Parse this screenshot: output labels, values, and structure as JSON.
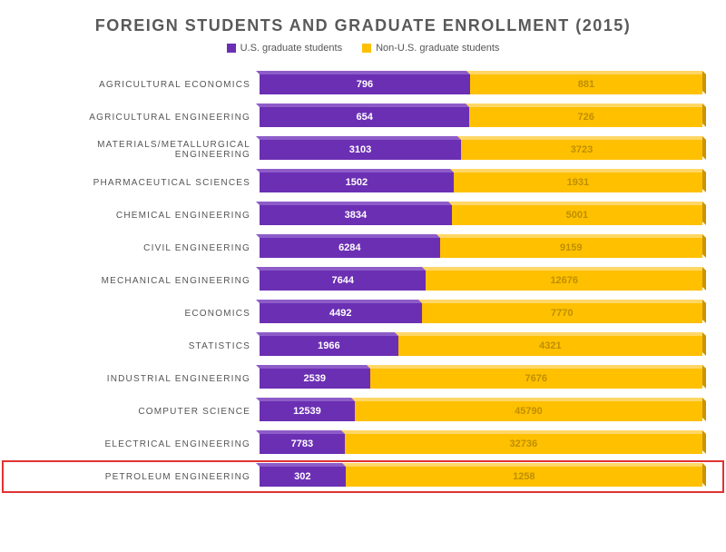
{
  "chart": {
    "type": "stacked-bar-horizontal-3d",
    "title": "FOREIGN STUDENTS AND GRADUATE ENROLLMENT (2015)",
    "title_fontsize": 18,
    "title_color": "#595959",
    "background_color": "#ffffff",
    "label_fontsize": 10,
    "bar_label_fontsize": 11,
    "series": [
      {
        "name": "U.S. graduate students",
        "color": "#6b2fb3",
        "top_color": "#8d5cc9",
        "end_color": "#4e1f87",
        "text_color": "#ffffff"
      },
      {
        "name": "Non-U.S. graduate students",
        "color": "#ffc000",
        "top_color": "#ffd766",
        "end_color": "#c99400",
        "text_color": "#bf8f00"
      }
    ],
    "categories": [
      {
        "label": "AGRICULTURAL ECONOMICS",
        "values": [
          796,
          881
        ],
        "pct": [
          0.475,
          0.525
        ]
      },
      {
        "label": "AGRICULTURAL ENGINEERING",
        "values": [
          654,
          726
        ],
        "pct": [
          0.474,
          0.526
        ]
      },
      {
        "label": "MATERIALS/METALLURGICAL ENGINEERING",
        "values": [
          3103,
          3723
        ],
        "pct": [
          0.455,
          0.545
        ]
      },
      {
        "label": "PHARMACEUTICAL SCIENCES",
        "values": [
          1502,
          1931
        ],
        "pct": [
          0.438,
          0.562
        ]
      },
      {
        "label": "CHEMICAL ENGINEERING",
        "values": [
          3834,
          5001
        ],
        "pct": [
          0.434,
          0.566
        ]
      },
      {
        "label": "CIVIL ENGINEERING",
        "values": [
          6284,
          9159
        ],
        "pct": [
          0.407,
          0.593
        ]
      },
      {
        "label": "MECHANICAL ENGINEERING",
        "values": [
          7644,
          12676
        ],
        "pct": [
          0.376,
          0.624
        ]
      },
      {
        "label": "ECONOMICS",
        "values": [
          4492,
          7770
        ],
        "pct": [
          0.366,
          0.634
        ]
      },
      {
        "label": "STATISTICS",
        "values": [
          1966,
          4321
        ],
        "pct": [
          0.313,
          0.687
        ]
      },
      {
        "label": "INDUSTRIAL ENGINEERING",
        "values": [
          2539,
          7676
        ],
        "pct": [
          0.249,
          0.751
        ]
      },
      {
        "label": "COMPUTER SCIENCE",
        "values": [
          12539,
          45790
        ],
        "pct": [
          0.215,
          0.785
        ]
      },
      {
        "label": "ELECTRICAL ENGINEERING",
        "values": [
          7783,
          32736
        ],
        "pct": [
          0.192,
          0.808
        ]
      },
      {
        "label": "PETROLEUM ENGINEERING",
        "values": [
          302,
          1258
        ],
        "pct": [
          0.194,
          0.806
        ],
        "highlighted": true
      }
    ],
    "highlight_border_color": "#e03232",
    "bar_track_width_pct": 100
  }
}
